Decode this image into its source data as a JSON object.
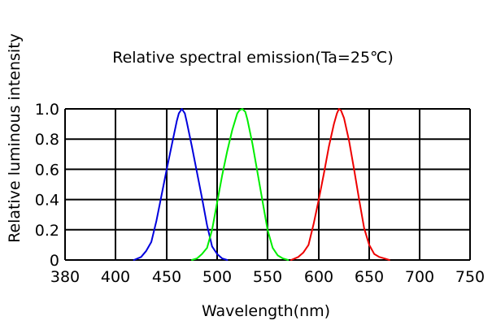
{
  "chart_data": {
    "type": "line",
    "title": "Relative spectral emission(Ta=25℃)",
    "xlabel": "Wavelength(nm)",
    "ylabel": "Relative luminous intensity",
    "xlim": [
      380,
      750
    ],
    "ylim": [
      0,
      1.0
    ],
    "x_ticks": [
      "380",
      "400",
      "450",
      "500",
      "550",
      "600",
      "650",
      "700",
      "750"
    ],
    "y_ticks": [
      "0",
      "0.2",
      "0.4",
      "0.6",
      "0.8",
      "1.0"
    ],
    "grid": true,
    "legend": "none",
    "series": [
      {
        "color": "#0000dd",
        "x": [
          418,
          425,
          430,
          435,
          440,
          445,
          450,
          455,
          460,
          462,
          465,
          468,
          470,
          475,
          480,
          485,
          490,
          495,
          500,
          505,
          510
        ],
        "y": [
          0.0,
          0.02,
          0.06,
          0.12,
          0.26,
          0.43,
          0.6,
          0.76,
          0.92,
          0.97,
          1.0,
          0.97,
          0.91,
          0.75,
          0.58,
          0.41,
          0.23,
          0.09,
          0.04,
          0.01,
          0.0
        ]
      },
      {
        "color": "#00ee00",
        "x": [
          475,
          480,
          485,
          490,
          495,
          500,
          505,
          510,
          515,
          520,
          522,
          525,
          528,
          530,
          535,
          540,
          545,
          550,
          555,
          560,
          565,
          570
        ],
        "y": [
          0.0,
          0.01,
          0.04,
          0.08,
          0.2,
          0.38,
          0.56,
          0.72,
          0.86,
          0.97,
          0.99,
          1.0,
          0.98,
          0.93,
          0.77,
          0.58,
          0.39,
          0.2,
          0.08,
          0.03,
          0.01,
          0.0
        ]
      },
      {
        "color": "#ee0000",
        "x": [
          573,
          580,
          585,
          590,
          595,
          600,
          605,
          610,
          615,
          618,
          620,
          622,
          625,
          630,
          635,
          640,
          645,
          650,
          655,
          660,
          665,
          670
        ],
        "y": [
          0.0,
          0.02,
          0.05,
          0.1,
          0.24,
          0.4,
          0.57,
          0.75,
          0.9,
          0.97,
          1.0,
          0.99,
          0.94,
          0.79,
          0.6,
          0.4,
          0.21,
          0.1,
          0.04,
          0.02,
          0.01,
          0.0
        ]
      }
    ]
  }
}
